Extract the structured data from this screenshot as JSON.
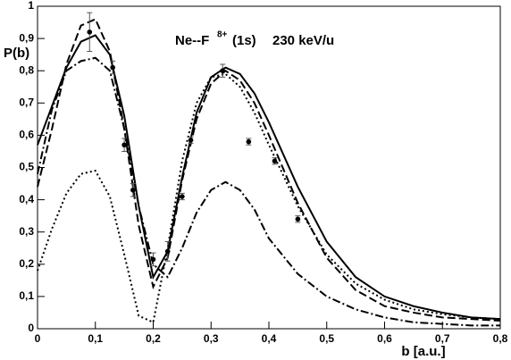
{
  "chart_data": {
    "type": "line",
    "title": "Ne--F",
    "title_superscript": "8+",
    "title_suffix": "(1s)",
    "annotation": "230 keV/u",
    "xlabel": "b [a.u.]",
    "ylabel": "P(b)",
    "xlim": [
      0,
      0.8
    ],
    "ylim": [
      0,
      1
    ],
    "xticks": [
      0,
      {
        "value": 0.1,
        "label": "0,1"
      },
      {
        "value": 0.2,
        "label": "0,2"
      },
      {
        "value": 0.3,
        "label": "0,3"
      },
      {
        "value": 0.4,
        "label": "0,4"
      },
      {
        "value": 0.5,
        "label": "0,5"
      },
      {
        "value": 0.6,
        "label": "0,6"
      },
      {
        "value": 0.7,
        "label": "0,7"
      },
      {
        "value": 0.8,
        "label": "0,8"
      }
    ],
    "yticks": [
      0,
      {
        "value": 0.1,
        "label": "0,1"
      },
      {
        "value": 0.2,
        "label": "0,2"
      },
      {
        "value": 0.3,
        "label": "0,3"
      },
      {
        "value": 0.4,
        "label": "0,4"
      },
      {
        "value": 0.5,
        "label": "0,5"
      },
      {
        "value": 0.6,
        "label": "0,6"
      },
      {
        "value": 0.7,
        "label": "0,7"
      },
      {
        "value": 0.8,
        "label": "0,8"
      },
      {
        "value": 0.9,
        "label": "0,9"
      },
      1
    ],
    "x": [
      0,
      0.025,
      0.05,
      0.075,
      0.1,
      0.125,
      0.15,
      0.175,
      0.2,
      0.225,
      0.25,
      0.275,
      0.3,
      0.325,
      0.35,
      0.375,
      0.4,
      0.45,
      0.5,
      0.55,
      0.6,
      0.65,
      0.7,
      0.75,
      0.8
    ],
    "series": [
      {
        "style": "solid",
        "color": "#000000",
        "values": [
          0.57,
          0.69,
          0.81,
          0.89,
          0.91,
          0.85,
          0.66,
          0.38,
          0.16,
          0.24,
          0.47,
          0.67,
          0.78,
          0.81,
          0.79,
          0.73,
          0.64,
          0.44,
          0.27,
          0.16,
          0.1,
          0.07,
          0.05,
          0.035,
          0.03
        ]
      },
      {
        "style": "dashed",
        "color": "#000000",
        "values": [
          0.44,
          0.62,
          0.82,
          0.94,
          0.96,
          0.86,
          0.62,
          0.32,
          0.13,
          0.22,
          0.46,
          0.65,
          0.76,
          0.8,
          0.77,
          0.7,
          0.6,
          0.39,
          0.22,
          0.12,
          0.07,
          0.05,
          0.035,
          0.03,
          0.025
        ]
      },
      {
        "style": "dashdot",
        "color": "#000000",
        "values": [
          0.48,
          0.68,
          0.8,
          0.83,
          0.84,
          0.8,
          0.62,
          0.38,
          0.2,
          0.16,
          0.25,
          0.36,
          0.43,
          0.455,
          0.43,
          0.37,
          0.28,
          0.17,
          0.1,
          0.06,
          0.035,
          0.02,
          0.015,
          0.01,
          0.01
        ]
      },
      {
        "style": "dotted",
        "color": "#000000",
        "values": [
          0.18,
          0.31,
          0.42,
          0.48,
          0.49,
          0.41,
          0.23,
          0.04,
          0.02,
          0.25,
          0.52,
          0.7,
          0.78,
          0.79,
          0.75,
          0.67,
          0.57,
          0.38,
          0.23,
          0.14,
          0.09,
          0.06,
          0.045,
          0.035,
          0.03
        ]
      }
    ],
    "points": {
      "color": "#000000",
      "x": [
        0.09,
        0.13,
        0.15,
        0.165,
        0.2,
        0.225,
        0.25,
        0.265,
        0.32,
        0.365,
        0.41,
        0.45
      ],
      "values": [
        0.92,
        0.81,
        0.57,
        0.43,
        0.215,
        0.24,
        0.41,
        0.585,
        0.8,
        0.58,
        0.52,
        0.34
      ],
      "errors": [
        0.06,
        0.02,
        0.02,
        0.02,
        0.02,
        0.03,
        0.01,
        0.01,
        0.02,
        0.01,
        0.01,
        0.01
      ]
    }
  }
}
